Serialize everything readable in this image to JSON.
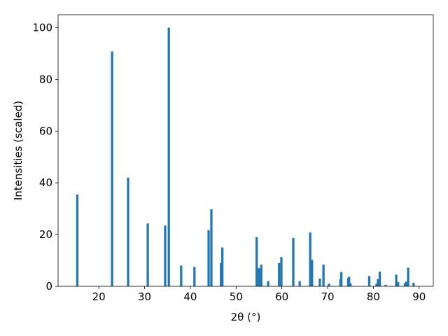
{
  "chart_data": {
    "type": "bar",
    "xlabel": "2θ (°)",
    "ylabel": "Intensities (scaled)",
    "color": "#1f77b4",
    "x": [
      15.3,
      22.9,
      26.4,
      30.7,
      34.5,
      35.3,
      38.0,
      40.9,
      44.0,
      44.6,
      46.7,
      47.0,
      54.5,
      55.0,
      55.5,
      57.0,
      59.4,
      59.9,
      62.5,
      63.9,
      66.2,
      66.6,
      68.3,
      69.1,
      70.3,
      72.8,
      73.0,
      74.5,
      74.7,
      75.0,
      79.1,
      80.7,
      81.0,
      81.4,
      82.7,
      85.0,
      85.4,
      86.9,
      87.2,
      87.6,
      88.8
    ],
    "values": [
      35.5,
      90.8,
      42,
      24.3,
      23.5,
      100,
      8,
      7.5,
      21.7,
      29.8,
      9,
      15,
      19,
      7,
      8.4,
      2,
      9,
      11.3,
      18.7,
      2,
      20.8,
      10.2,
      3,
      8.4,
      1,
      2.8,
      5.5,
      3.2,
      3.7,
      1.2,
      4,
      1,
      2.8,
      5.7,
      0.6,
      4.5,
      1.6,
      1.2,
      1.8,
      7.2,
      1.4
    ],
    "xlim": [
      11.1,
      93.1
    ],
    "xticks": [
      20,
      30,
      40,
      50,
      60,
      70,
      80,
      90
    ],
    "ylim": [
      0,
      105
    ],
    "yticks": [
      0,
      20,
      40,
      60,
      80,
      100
    ]
  }
}
